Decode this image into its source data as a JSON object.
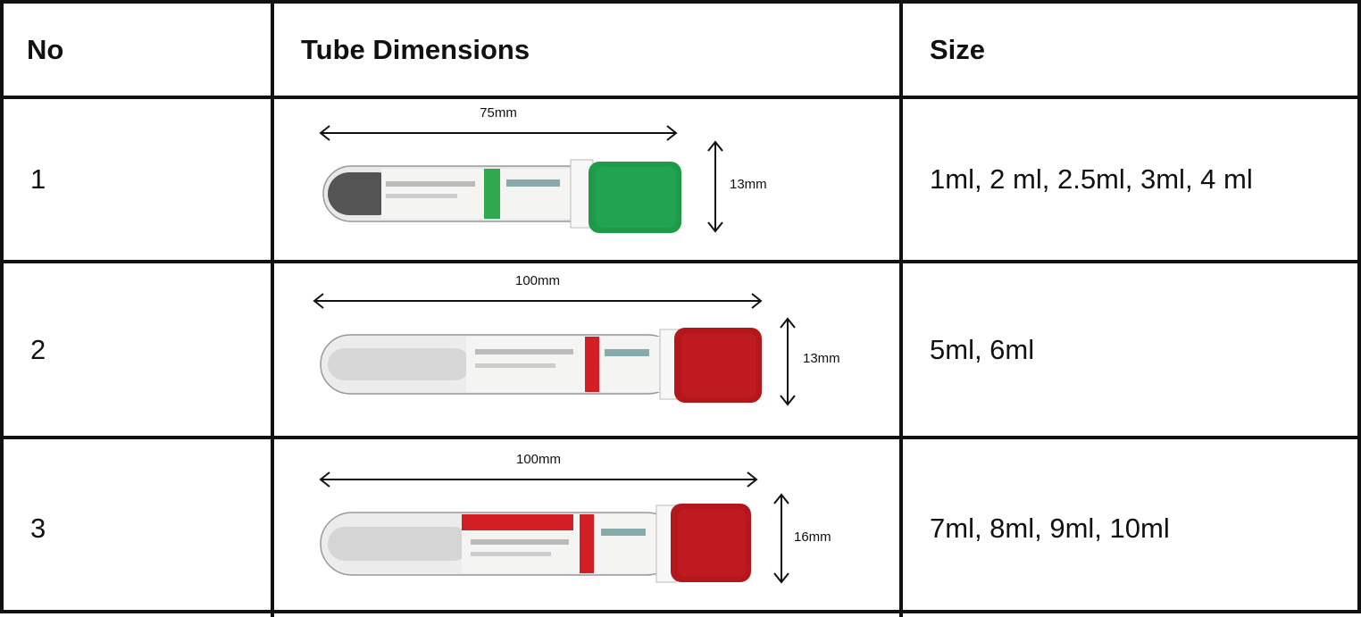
{
  "table": {
    "headers": {
      "no": "No",
      "dimensions": "Tube Dimensions",
      "size": "Size"
    },
    "rows": [
      {
        "no": "1",
        "length": "75mm",
        "diameter": "13mm",
        "sizes": "1ml, 2 ml, 2.5ml, 3ml, 4 ml",
        "cap_color": "#1e9a48",
        "tube_contents": "dark"
      },
      {
        "no": "2",
        "length": "100mm",
        "diameter": "13mm",
        "sizes": "5ml, 6ml",
        "cap_color": "#b3161b",
        "tube_contents": "clear"
      },
      {
        "no": "3",
        "length": "100mm",
        "diameter": "16mm",
        "sizes": "7ml, 8ml, 9ml, 10ml",
        "cap_color": "#b3161b",
        "tube_contents": "clear"
      }
    ]
  },
  "colors": {
    "border": "#111111",
    "label_green": "#2fa84f",
    "label_red": "#d21e24"
  }
}
